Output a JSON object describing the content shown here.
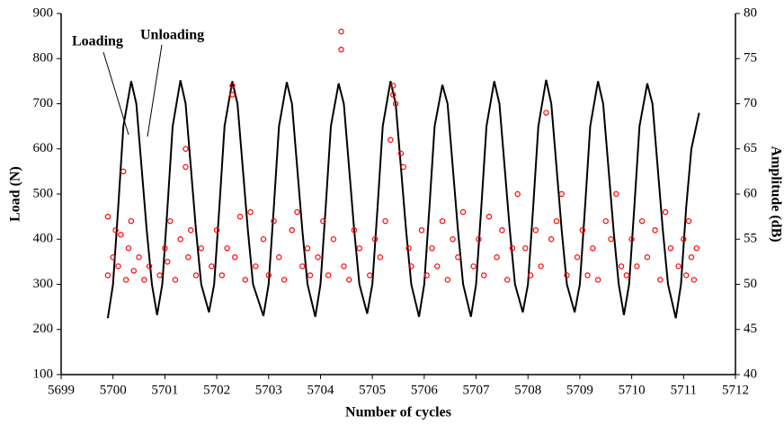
{
  "chart_data": {
    "type": "combo",
    "xlabel": "Number of cycles",
    "ylabel": "Load (N)",
    "y2label": "Amplitude (dB)",
    "annotations": [
      "Loading",
      "Unloading"
    ],
    "xlim": [
      5699,
      5712
    ],
    "xticks": [
      5699,
      5700,
      5701,
      5702,
      5703,
      5704,
      5705,
      5706,
      5707,
      5708,
      5709,
      5710,
      5711,
      5712
    ],
    "ylim": [
      100,
      900
    ],
    "yticks": [
      100,
      200,
      300,
      400,
      500,
      600,
      700,
      800,
      900
    ],
    "y2lim": [
      40,
      80
    ],
    "y2ticks": [
      40,
      45,
      50,
      55,
      60,
      65,
      70,
      75,
      80
    ],
    "series": [
      {
        "type": "line",
        "color": "#000000",
        "x": [
          5699.9,
          5700.0,
          5700.1,
          5700.2,
          5700.35,
          5700.45,
          5700.55,
          5700.65,
          5700.75,
          5700.85,
          5700.95,
          5701.05,
          5701.15,
          5701.3,
          5701.4,
          5701.5,
          5701.6,
          5701.7,
          5701.85,
          5701.95,
          5702.05,
          5702.15,
          5702.3,
          5702.4,
          5702.5,
          5702.6,
          5702.7,
          5702.9,
          5703.0,
          5703.1,
          5703.2,
          5703.35,
          5703.45,
          5703.55,
          5703.65,
          5703.75,
          5703.9,
          5704.0,
          5704.1,
          5704.2,
          5704.35,
          5704.45,
          5704.55,
          5704.65,
          5704.75,
          5704.9,
          5705.0,
          5705.1,
          5705.2,
          5705.35,
          5705.45,
          5705.55,
          5705.65,
          5705.75,
          5705.9,
          5706.0,
          5706.1,
          5706.2,
          5706.35,
          5706.45,
          5706.55,
          5706.65,
          5706.75,
          5706.9,
          5707.0,
          5707.1,
          5707.2,
          5707.35,
          5707.45,
          5707.55,
          5707.65,
          5707.75,
          5707.9,
          5708.0,
          5708.1,
          5708.2,
          5708.35,
          5708.45,
          5708.55,
          5708.65,
          5708.75,
          5708.9,
          5709.0,
          5709.1,
          5709.2,
          5709.35,
          5709.45,
          5709.55,
          5709.65,
          5709.75,
          5709.85,
          5709.95,
          5710.05,
          5710.15,
          5710.3,
          5710.4,
          5710.5,
          5710.6,
          5710.7,
          5710.85,
          5710.95,
          5711.05,
          5711.15,
          5711.3
        ],
        "values": [
          225,
          300,
          470,
          650,
          750,
          700,
          560,
          420,
          300,
          232,
          300,
          470,
          650,
          752,
          700,
          560,
          420,
          300,
          238,
          300,
          470,
          650,
          750,
          700,
          560,
          420,
          300,
          230,
          300,
          470,
          650,
          748,
          700,
          560,
          420,
          300,
          228,
          300,
          470,
          650,
          745,
          700,
          560,
          420,
          300,
          235,
          300,
          470,
          650,
          750,
          700,
          560,
          420,
          300,
          228,
          300,
          470,
          650,
          742,
          700,
          560,
          420,
          300,
          228,
          300,
          470,
          650,
          750,
          700,
          560,
          420,
          300,
          238,
          300,
          470,
          650,
          753,
          700,
          560,
          420,
          300,
          238,
          300,
          470,
          650,
          750,
          700,
          560,
          420,
          300,
          232,
          300,
          470,
          650,
          745,
          700,
          560,
          420,
          300,
          225,
          300,
          470,
          600,
          680
        ]
      },
      {
        "type": "scatter",
        "axis": "y2",
        "color": "#ff0000",
        "x": [
          5699.9,
          5699.9,
          5700.0,
          5700.05,
          5700.1,
          5700.15,
          5700.2,
          5700.25,
          5700.3,
          5700.35,
          5700.4,
          5700.5,
          5700.6,
          5700.7,
          5700.9,
          5701.0,
          5701.05,
          5701.1,
          5701.2,
          5701.3,
          5701.4,
          5701.4,
          5701.45,
          5701.5,
          5701.6,
          5701.7,
          5701.9,
          5702.0,
          5702.1,
          5702.2,
          5702.3,
          5702.3,
          5702.35,
          5702.45,
          5702.55,
          5702.65,
          5702.75,
          5702.9,
          5703.0,
          5703.1,
          5703.2,
          5703.3,
          5703.45,
          5703.55,
          5703.65,
          5703.75,
          5703.8,
          5703.95,
          5704.05,
          5704.15,
          5704.25,
          5704.4,
          5704.4,
          5704.45,
          5704.55,
          5704.65,
          5704.75,
          5704.95,
          5705.05,
          5705.15,
          5705.25,
          5705.35,
          5705.4,
          5705.45,
          5705.4,
          5705.55,
          5705.6,
          5705.7,
          5705.75,
          5705.95,
          5706.05,
          5706.15,
          5706.25,
          5706.35,
          5706.45,
          5706.55,
          5706.65,
          5706.75,
          5706.95,
          5707.05,
          5707.15,
          5707.25,
          5707.4,
          5707.5,
          5707.6,
          5707.7,
          5707.8,
          5707.95,
          5708.05,
          5708.15,
          5708.25,
          5708.35,
          5708.45,
          5708.55,
          5708.65,
          5708.75,
          5708.95,
          5709.05,
          5709.15,
          5709.25,
          5709.35,
          5709.5,
          5709.6,
          5709.7,
          5709.8,
          5709.9,
          5710.0,
          5710.1,
          5710.2,
          5710.3,
          5710.45,
          5710.55,
          5710.65,
          5710.75,
          5710.9,
          5711.0,
          5711.05,
          5711.1,
          5711.15,
          5711.2,
          5711.25
        ],
        "values": [
          57.5,
          51,
          53,
          56,
          52,
          55.5,
          62.5,
          50.5,
          54,
          57,
          51.5,
          53,
          50.5,
          52,
          51,
          54,
          52.5,
          57,
          50.5,
          55,
          65,
          63,
          53,
          56,
          51,
          54,
          52,
          56,
          51,
          54,
          72,
          71,
          53,
          57.5,
          50.5,
          58,
          52,
          55,
          51,
          57,
          53,
          50.5,
          56,
          58,
          52,
          54,
          51,
          53,
          57,
          51,
          55,
          78,
          76,
          52,
          50.5,
          56,
          54,
          51,
          55,
          53,
          57,
          66,
          72,
          70,
          71,
          64.5,
          63,
          54,
          52,
          56,
          51,
          54,
          52,
          57,
          50.5,
          55,
          53,
          58,
          52,
          55,
          51,
          57.5,
          53,
          56,
          50.5,
          54,
          60,
          54,
          51,
          56,
          52,
          69,
          55,
          57,
          60,
          51,
          53,
          56,
          51,
          54,
          50.5,
          57,
          55,
          60,
          52,
          51,
          55,
          52,
          57,
          53,
          56,
          50.5,
          58,
          54,
          52,
          55,
          51,
          57,
          53,
          50.5,
          54
        ]
      }
    ]
  }
}
